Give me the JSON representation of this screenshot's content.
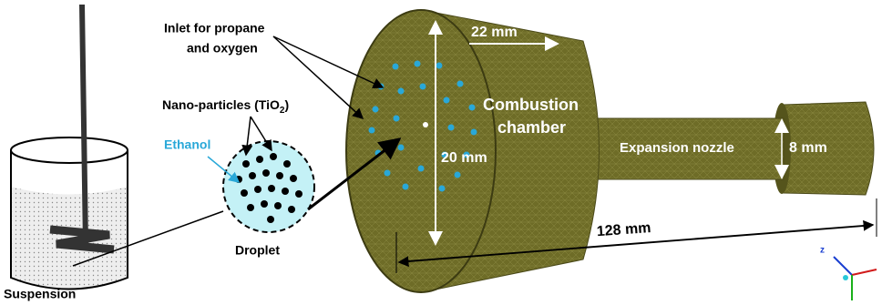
{
  "labels": {
    "inlet": [
      "Inlet for propane",
      "and oxygen"
    ],
    "nanoparticles": {
      "text": "Nano-particles (TiO",
      "subscript": "2",
      "suffix": ")"
    },
    "ethanol": "Ethanol",
    "droplet": "Droplet",
    "suspension": "Suspension",
    "chamber_length": "22 mm",
    "chamber": [
      "Combustion",
      "chamber"
    ],
    "nozzle": "Expansion nozzle",
    "nozzle_diameter": "8 mm",
    "chamber_diameter": "20 mm",
    "total_length": "128 mm",
    "axis_z": "z"
  }
}
